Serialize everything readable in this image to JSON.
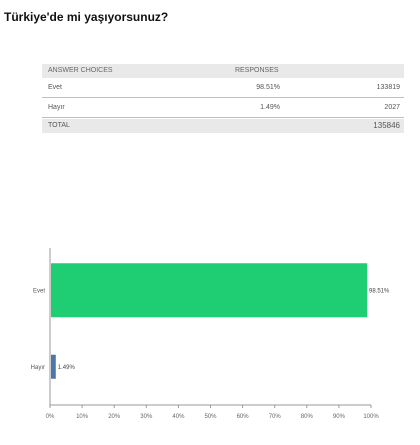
{
  "question": "Türkiye'de mi yaşıyorsunuz?",
  "table": {
    "headers": {
      "choices": "ANSWER CHOICES",
      "responses": "RESPONSES"
    },
    "rows": [
      {
        "label": "Evet",
        "percent": "98.51%",
        "count": "133819"
      },
      {
        "label": "Hayır",
        "percent": "1.49%",
        "count": "2027"
      }
    ],
    "total": {
      "label": "TOTAL",
      "count": "135846"
    }
  },
  "chart_data": {
    "type": "bar",
    "orientation": "horizontal",
    "categories": [
      "Evet",
      "Hayır"
    ],
    "values": [
      98.51,
      1.49
    ],
    "value_labels": [
      "98.51%",
      "1.49%"
    ],
    "bar_colors": [
      "#1fcd73",
      "#4b77a9"
    ],
    "xlim": [
      0,
      100
    ],
    "xticks": [
      "0%",
      "10%",
      "20%",
      "30%",
      "40%",
      "50%",
      "60%",
      "70%",
      "80%",
      "90%",
      "100%"
    ],
    "grid": false,
    "legend": "none"
  }
}
